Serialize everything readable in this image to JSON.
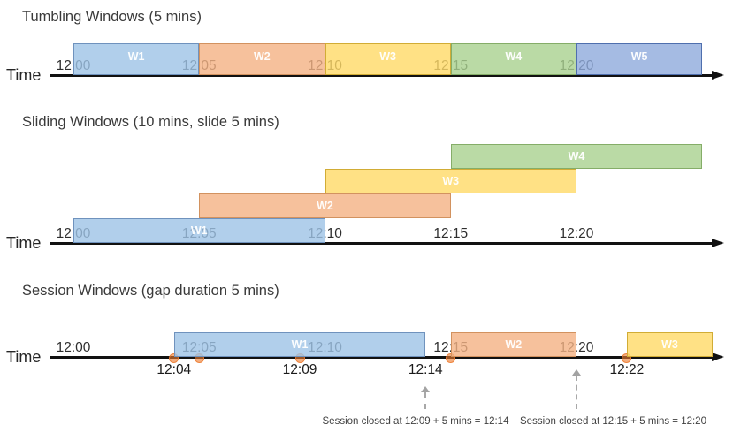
{
  "axis": {
    "label": "Time",
    "ticks": [
      {
        "minute": 0,
        "label": "12:00"
      },
      {
        "minute": 5,
        "label": "12:05"
      },
      {
        "minute": 10,
        "label": "12:10"
      },
      {
        "minute": 15,
        "label": "12:15"
      },
      {
        "minute": 20,
        "label": "12:20"
      }
    ]
  },
  "palette": {
    "blue": "#9DC3E6",
    "orange": "#F4B183",
    "yellow": "#FFD966",
    "green": "#A9D18E",
    "indigo": "#8FAADC",
    "event_dot": "#ED7D31",
    "annotation_gray": "#A6A6A6"
  },
  "sections": [
    {
      "id": "tumbling",
      "title": "Tumbling Windows (5 mins)",
      "windows": [
        {
          "label": "W1",
          "color": "blue",
          "start_min": 0,
          "end_min": 5
        },
        {
          "label": "W2",
          "color": "orange",
          "start_min": 5,
          "end_min": 10
        },
        {
          "label": "W3",
          "color": "yellow",
          "start_min": 10,
          "end_min": 15
        },
        {
          "label": "W4",
          "color": "green",
          "start_min": 15,
          "end_min": 20
        },
        {
          "label": "W5",
          "color": "indigo",
          "start_min": 20,
          "end_min": 25
        }
      ]
    },
    {
      "id": "sliding",
      "title": "Sliding Windows (10 mins, slide 5 mins)",
      "windows": [
        {
          "label": "W1",
          "color": "blue",
          "start_min": 0,
          "end_min": 10,
          "row": 0
        },
        {
          "label": "W2",
          "color": "orange",
          "start_min": 5,
          "end_min": 15,
          "row": 1
        },
        {
          "label": "W3",
          "color": "yellow",
          "start_min": 10,
          "end_min": 20,
          "row": 2
        },
        {
          "label": "W4",
          "color": "green",
          "start_min": 15,
          "end_min": 25,
          "row": 3
        }
      ]
    },
    {
      "id": "session",
      "title": "Session Windows (gap duration 5 mins)",
      "windows": [
        {
          "label": "W1",
          "color": "blue",
          "start": "12:04",
          "end": "12:14",
          "start_min": 4,
          "end_min": 14
        },
        {
          "label": "W2",
          "color": "orange",
          "start": "12:15",
          "end": "12:20",
          "start_min": 15,
          "end_min": 20
        },
        {
          "label": "W3",
          "color": "yellow",
          "start": "12:22",
          "end": null,
          "start_min": 22,
          "end_min": 25.5,
          "open_ended": true
        }
      ],
      "events": [
        {
          "minute": 4,
          "time": "12:04"
        },
        {
          "minute": 5,
          "time": "12:05"
        },
        {
          "minute": 9,
          "time": "12:09"
        },
        {
          "minute": 15,
          "time": "12:15"
        },
        {
          "minute": 22,
          "time": "12:22"
        }
      ],
      "event_labels": [
        {
          "minute": 4,
          "label": "12:04"
        },
        {
          "minute": 9,
          "label": "12:09"
        },
        {
          "minute": 14,
          "label": "12:14"
        },
        {
          "minute": 22,
          "label": "12:22"
        }
      ],
      "annotations": [
        {
          "text": "Session closed at 12:09 + 5 mins = 12:14",
          "arrow_minute": 14
        },
        {
          "text": "Session closed at 12:15 + 5 mins = 12:20",
          "arrow_minute": 20
        }
      ]
    }
  ]
}
